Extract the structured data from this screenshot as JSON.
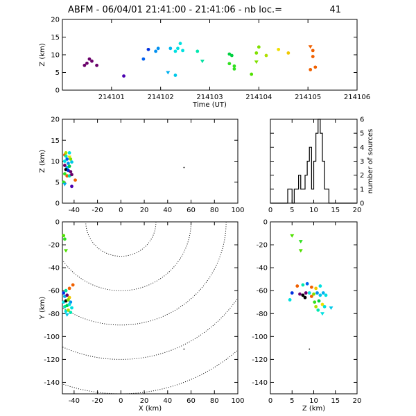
{
  "figure": {
    "title": "ABFM - 06/04/01 21:41:00 - 21:41:06 - nb loc.=",
    "count": "41"
  },
  "chart_data": [
    {
      "id": "time_z",
      "type": "scatter",
      "xlabel": "Time (UT)",
      "ylabel": "Z (km)",
      "xlim": [
        214100,
        214106
      ],
      "ylim": [
        0,
        20
      ],
      "xticks": [
        "214101",
        "214102",
        "214103",
        "214104",
        "214105",
        "214106"
      ],
      "yticks": [
        "0",
        "5",
        "10",
        "15",
        "20"
      ],
      "points": [
        {
          "x": 214100.55,
          "z": 8.8,
          "color": "#6a006a",
          "shape": "circle"
        },
        {
          "x": 214100.6,
          "z": 8.2,
          "color": "#6a006a",
          "shape": "circle"
        },
        {
          "x": 214100.5,
          "z": 7.6,
          "color": "#6a006a",
          "shape": "circle"
        },
        {
          "x": 214100.45,
          "z": 7.0,
          "color": "#6a006a",
          "shape": "circle"
        },
        {
          "x": 214100.7,
          "z": 7.0,
          "color": "#6a006a",
          "shape": "circle"
        },
        {
          "x": 214101.25,
          "z": 4.0,
          "color": "#4a00b0",
          "shape": "circle"
        },
        {
          "x": 214101.75,
          "z": 11.5,
          "color": "#0030e0",
          "shape": "circle"
        },
        {
          "x": 214101.65,
          "z": 8.8,
          "color": "#0060f0",
          "shape": "circle"
        },
        {
          "x": 214101.95,
          "z": 11.8,
          "color": "#0090f0",
          "shape": "circle"
        },
        {
          "x": 214101.9,
          "z": 11.0,
          "color": "#0090f0",
          "shape": "circle"
        },
        {
          "x": 214102.15,
          "z": 5.0,
          "color": "#00b0f0",
          "shape": "triangle"
        },
        {
          "x": 214102.2,
          "z": 11.8,
          "color": "#00b8f0",
          "shape": "circle"
        },
        {
          "x": 214102.3,
          "z": 4.2,
          "color": "#00c8e8",
          "shape": "circle"
        },
        {
          "x": 214102.4,
          "z": 13.2,
          "color": "#00e0e0",
          "shape": "circle"
        },
        {
          "x": 214102.35,
          "z": 11.8,
          "color": "#00e0e0",
          "shape": "circle"
        },
        {
          "x": 214102.3,
          "z": 11.0,
          "color": "#00e0e0",
          "shape": "circle"
        },
        {
          "x": 214102.45,
          "z": 11.2,
          "color": "#00e0e0",
          "shape": "circle"
        },
        {
          "x": 214102.75,
          "z": 11.0,
          "color": "#00e8b0",
          "shape": "circle"
        },
        {
          "x": 214102.85,
          "z": 8.2,
          "color": "#00e0a0",
          "shape": "triangle"
        },
        {
          "x": 214103.4,
          "z": 10.2,
          "color": "#00d040",
          "shape": "circle"
        },
        {
          "x": 214103.45,
          "z": 9.8,
          "color": "#00d040",
          "shape": "circle"
        },
        {
          "x": 214103.4,
          "z": 7.5,
          "color": "#30e020",
          "shape": "circle"
        },
        {
          "x": 214103.5,
          "z": 6.8,
          "color": "#30e020",
          "shape": "circle"
        },
        {
          "x": 214103.5,
          "z": 6.0,
          "color": "#30e020",
          "shape": "circle"
        },
        {
          "x": 214103.85,
          "z": 4.5,
          "color": "#50e000",
          "shape": "circle"
        },
        {
          "x": 214103.95,
          "z": 10.5,
          "color": "#80e000",
          "shape": "circle"
        },
        {
          "x": 214104.0,
          "z": 12.2,
          "color": "#80e000",
          "shape": "circle"
        },
        {
          "x": 214103.95,
          "z": 8.0,
          "color": "#80e000",
          "shape": "triangle"
        },
        {
          "x": 214104.15,
          "z": 9.8,
          "color": "#b0e000",
          "shape": "circle"
        },
        {
          "x": 214104.4,
          "z": 11.5,
          "color": "#f0e000",
          "shape": "circle"
        },
        {
          "x": 214104.6,
          "z": 10.5,
          "color": "#f0c800",
          "shape": "circle"
        },
        {
          "x": 214105.05,
          "z": 12.3,
          "color": "#f06000",
          "shape": "triangle"
        },
        {
          "x": 214105.1,
          "z": 11.2,
          "color": "#f06000",
          "shape": "circle"
        },
        {
          "x": 214105.1,
          "z": 9.5,
          "color": "#f06000",
          "shape": "circle"
        },
        {
          "x": 214105.15,
          "z": 6.5,
          "color": "#f06000",
          "shape": "circle"
        },
        {
          "x": 214105.05,
          "z": 5.8,
          "color": "#f06000",
          "shape": "circle"
        }
      ]
    },
    {
      "id": "x_z",
      "type": "scatter",
      "xlabel": "",
      "ylabel": "Z (km)",
      "xlim": [
        -50,
        100
      ],
      "ylim": [
        0,
        20
      ],
      "xticks": [
        "-40",
        "-20",
        "0",
        "20",
        "40",
        "60",
        "80",
        "100"
      ],
      "yticks": [
        "0",
        "5",
        "10",
        "15",
        "20"
      ],
      "points": [
        {
          "x": -48,
          "z": 11.5,
          "color": "#f06000",
          "shape": "circle"
        },
        {
          "x": -47,
          "z": 11.2,
          "color": "#00e8b0",
          "shape": "circle"
        },
        {
          "x": -44,
          "z": 11.0,
          "color": "#f0e000",
          "shape": "triangle"
        },
        {
          "x": -46,
          "z": 10.5,
          "color": "#0060f0",
          "shape": "circle"
        },
        {
          "x": -43,
          "z": 10.5,
          "color": "#80e000",
          "shape": "circle"
        },
        {
          "x": -48,
          "z": 10.0,
          "color": "#00e0e0",
          "shape": "circle"
        },
        {
          "x": -45,
          "z": 9.5,
          "color": "#0090f0",
          "shape": "circle"
        },
        {
          "x": -42,
          "z": 9.8,
          "color": "#00c8e8",
          "shape": "circle"
        },
        {
          "x": -48,
          "z": 9.0,
          "color": "#6a006a",
          "shape": "circle"
        },
        {
          "x": -46,
          "z": 8.5,
          "color": "#00b0f0",
          "shape": "circle"
        },
        {
          "x": -44,
          "z": 8.8,
          "color": "#00d040",
          "shape": "circle"
        },
        {
          "x": -47,
          "z": 8.0,
          "color": "#000000",
          "shape": "circle"
        },
        {
          "x": -45,
          "z": 7.8,
          "color": "#0030e0",
          "shape": "circle"
        },
        {
          "x": -43,
          "z": 7.5,
          "color": "#6a006a",
          "shape": "circle"
        },
        {
          "x": -48,
          "z": 7.0,
          "color": "#30e020",
          "shape": "circle"
        },
        {
          "x": -46,
          "z": 6.5,
          "color": "#f06000",
          "shape": "circle"
        },
        {
          "x": -44,
          "z": 6.5,
          "color": "#00e0a0",
          "shape": "circle"
        },
        {
          "x": -42,
          "z": 6.8,
          "color": "#6a006a",
          "shape": "circle"
        },
        {
          "x": -39,
          "z": 5.5,
          "color": "#f06000",
          "shape": "circle"
        },
        {
          "x": -49,
          "z": 5.0,
          "color": "#30e020",
          "shape": "circle"
        },
        {
          "x": -48,
          "z": 4.5,
          "color": "#00b0f0",
          "shape": "triangle"
        },
        {
          "x": -42,
          "z": 4.0,
          "color": "#4a00b0",
          "shape": "circle"
        },
        {
          "x": -44,
          "z": 12.0,
          "color": "#00e0e0",
          "shape": "circle"
        },
        {
          "x": -47,
          "z": 12.0,
          "color": "#b0e000",
          "shape": "circle"
        },
        {
          "x": 54,
          "z": 8.5,
          "color": "#000000",
          "shape": "dot"
        }
      ]
    },
    {
      "id": "histogram",
      "type": "histogram",
      "xlabel": "",
      "ylabel": "number of sources",
      "xlim": [
        0,
        20
      ],
      "ylim": [
        0,
        6
      ],
      "xticks": [
        "0",
        "5",
        "10",
        "15",
        "20"
      ],
      "yticks": [
        "0",
        "1",
        "2",
        "3",
        "4",
        "5",
        "6"
      ],
      "bin_width": 0.5,
      "bins_start": 0,
      "counts": [
        0,
        0,
        0,
        0,
        0,
        0,
        0,
        0,
        1,
        1,
        0,
        1,
        1,
        2,
        1,
        1,
        2,
        3,
        4,
        1,
        3,
        5,
        6,
        5,
        3,
        1,
        1,
        0,
        0,
        0,
        0,
        0,
        0,
        0,
        0,
        0,
        0,
        0,
        0,
        0
      ]
    },
    {
      "id": "x_y",
      "type": "scatter",
      "xlabel": "X (km)",
      "ylabel": "Y (km)",
      "xlim": [
        -50,
        100
      ],
      "ylim": [
        -150,
        0
      ],
      "xticks": [
        "-40",
        "-20",
        "0",
        "20",
        "40",
        "60",
        "80",
        "100"
      ],
      "yticks": [
        "-140",
        "-120",
        "-100",
        "-80",
        "-60",
        "-40",
        "-20",
        "0"
      ],
      "range_rings_km": [
        30,
        60,
        90,
        120,
        150
      ],
      "ring_center": [
        0,
        0
      ],
      "points": [
        {
          "x": -49,
          "y": -12,
          "color": "#50e000",
          "shape": "circle"
        },
        {
          "x": -48,
          "y": -15,
          "color": "#30e020",
          "shape": "circle"
        },
        {
          "x": -47,
          "y": -25,
          "color": "#50e000",
          "shape": "triangle"
        },
        {
          "x": -49,
          "y": -62,
          "color": "#0030e0",
          "shape": "circle"
        },
        {
          "x": -47,
          "y": -60,
          "color": "#00e0a0",
          "shape": "circle"
        },
        {
          "x": -44,
          "y": -58,
          "color": "#f06000",
          "shape": "circle"
        },
        {
          "x": -41,
          "y": -55,
          "color": "#f06000",
          "shape": "circle"
        },
        {
          "x": -48,
          "y": -65,
          "color": "#00b0f0",
          "shape": "circle"
        },
        {
          "x": -46,
          "y": -64,
          "color": "#6a006a",
          "shape": "circle"
        },
        {
          "x": -44,
          "y": -66,
          "color": "#f0c800",
          "shape": "circle"
        },
        {
          "x": -49,
          "y": -70,
          "color": "#00e0e0",
          "shape": "circle"
        },
        {
          "x": -47,
          "y": -69,
          "color": "#000000",
          "shape": "circle"
        },
        {
          "x": -45,
          "y": -68,
          "color": "#80e000",
          "shape": "circle"
        },
        {
          "x": -43,
          "y": -70,
          "color": "#0090f0",
          "shape": "circle"
        },
        {
          "x": -48,
          "y": -74,
          "color": "#00e8b0",
          "shape": "circle"
        },
        {
          "x": -46,
          "y": -73,
          "color": "#00d040",
          "shape": "circle"
        },
        {
          "x": -44,
          "y": -72,
          "color": "#00e0e0",
          "shape": "circle"
        },
        {
          "x": -42,
          "y": -75,
          "color": "#00e0e0",
          "shape": "circle"
        },
        {
          "x": -47,
          "y": -78,
          "color": "#00e0e0",
          "shape": "circle"
        },
        {
          "x": -45,
          "y": -77,
          "color": "#b0e000",
          "shape": "circle"
        },
        {
          "x": -43,
          "y": -79,
          "color": "#00e8b0",
          "shape": "circle"
        },
        {
          "x": -46,
          "y": -81,
          "color": "#00c8e8",
          "shape": "triangle"
        },
        {
          "x": 54,
          "y": -111,
          "color": "#000000",
          "shape": "dot"
        }
      ]
    },
    {
      "id": "z_y",
      "type": "scatter",
      "xlabel": "Z (km)",
      "ylabel": "",
      "xlim": [
        0,
        20
      ],
      "ylim": [
        -150,
        0
      ],
      "xticks": [
        "0",
        "5",
        "10",
        "15",
        "20"
      ],
      "yticks": [
        "-140",
        "-120",
        "-100",
        "-80",
        "-60",
        "-40",
        "-20",
        "0"
      ],
      "points": [
        {
          "x": 5.0,
          "y": -12,
          "color": "#50e000",
          "shape": "triangle"
        },
        {
          "x": 7.0,
          "y": -17,
          "color": "#30e020",
          "shape": "triangle"
        },
        {
          "x": 7.0,
          "y": -25,
          "color": "#50e000",
          "shape": "triangle"
        },
        {
          "x": 6.2,
          "y": -56,
          "color": "#f06000",
          "shape": "circle"
        },
        {
          "x": 7.5,
          "y": -55,
          "color": "#00e8b0",
          "shape": "circle"
        },
        {
          "x": 8.5,
          "y": -54,
          "color": "#0060f0",
          "shape": "circle"
        },
        {
          "x": 9.5,
          "y": -57,
          "color": "#f06000",
          "shape": "circle"
        },
        {
          "x": 10.5,
          "y": -58,
          "color": "#f0c800",
          "shape": "circle"
        },
        {
          "x": 11.5,
          "y": -56,
          "color": "#00e0e0",
          "shape": "circle"
        },
        {
          "x": 5.0,
          "y": -62,
          "color": "#0030e0",
          "shape": "circle"
        },
        {
          "x": 6.8,
          "y": -63,
          "color": "#6a006a",
          "shape": "circle"
        },
        {
          "x": 7.5,
          "y": -64,
          "color": "#000000",
          "shape": "circle"
        },
        {
          "x": 8.2,
          "y": -62,
          "color": "#6a006a",
          "shape": "circle"
        },
        {
          "x": 9.0,
          "y": -62,
          "color": "#00e0e0",
          "shape": "circle"
        },
        {
          "x": 9.5,
          "y": -65,
          "color": "#f06000",
          "shape": "circle"
        },
        {
          "x": 10.0,
          "y": -63,
          "color": "#80e000",
          "shape": "circle"
        },
        {
          "x": 10.8,
          "y": -62,
          "color": "#0090f0",
          "shape": "circle"
        },
        {
          "x": 11.5,
          "y": -64,
          "color": "#00c8e8",
          "shape": "circle"
        },
        {
          "x": 12.2,
          "y": -62,
          "color": "#00b0f0",
          "shape": "circle"
        },
        {
          "x": 12.8,
          "y": -64,
          "color": "#00e0e0",
          "shape": "circle"
        },
        {
          "x": 4.5,
          "y": -68,
          "color": "#00e0e0",
          "shape": "circle"
        },
        {
          "x": 8.0,
          "y": -66,
          "color": "#000000",
          "shape": "circle"
        },
        {
          "x": 10.2,
          "y": -70,
          "color": "#30e020",
          "shape": "circle"
        },
        {
          "x": 11.2,
          "y": -69,
          "color": "#00d040",
          "shape": "circle"
        },
        {
          "x": 12.0,
          "y": -72,
          "color": "#f0e000",
          "shape": "circle"
        },
        {
          "x": 10.5,
          "y": -74,
          "color": "#b0e000",
          "shape": "circle"
        },
        {
          "x": 11.0,
          "y": -77,
          "color": "#00e8b0",
          "shape": "circle"
        },
        {
          "x": 12.5,
          "y": -74,
          "color": "#00e0e0",
          "shape": "circle"
        },
        {
          "x": 14.0,
          "y": -75,
          "color": "#00c8e8",
          "shape": "triangle"
        },
        {
          "x": 12.0,
          "y": -80,
          "color": "#00e0e0",
          "shape": "triangle"
        },
        {
          "x": 9.0,
          "y": -111,
          "color": "#000000",
          "shape": "dot"
        }
      ]
    }
  ]
}
